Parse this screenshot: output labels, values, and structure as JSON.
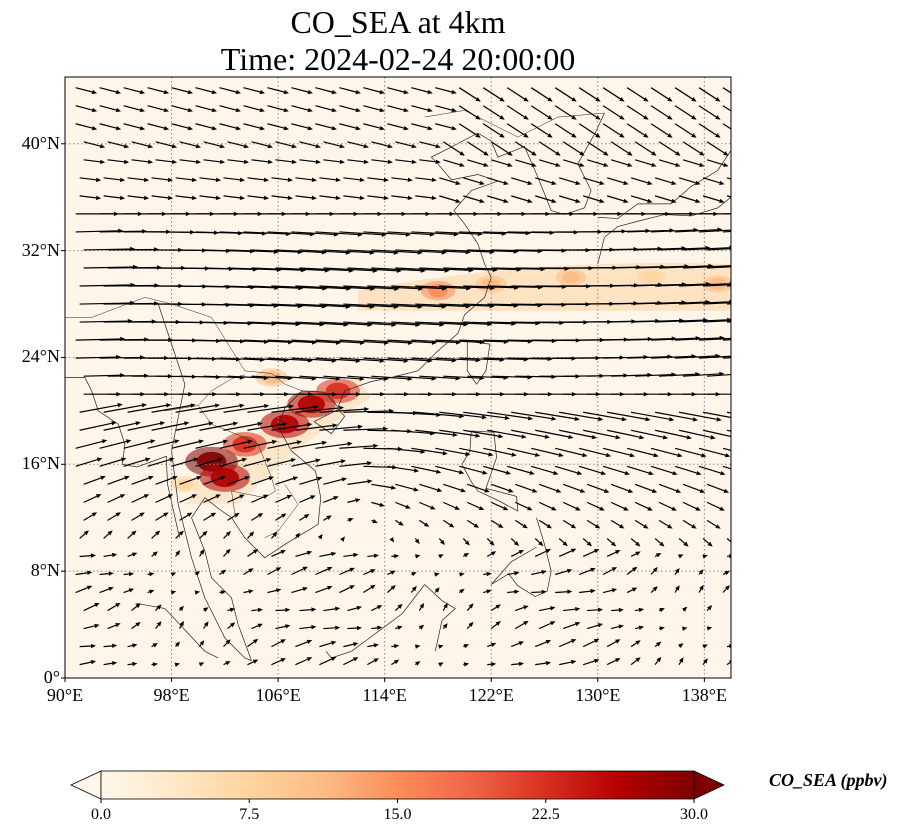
{
  "title": {
    "line1": "CO_SEA at 4km",
    "line2": "Time: 2024-02-24 20:00:00"
  },
  "axes": {
    "lon_range": [
      90,
      140
    ],
    "lat_range": [
      0,
      45
    ],
    "x_ticks": [
      "90°E",
      "98°E",
      "106°E",
      "114°E",
      "122°E",
      "130°E",
      "138°E"
    ],
    "x_tick_values": [
      90,
      98,
      106,
      114,
      122,
      130,
      138
    ],
    "y_ticks": [
      "0°",
      "8°N",
      "16°N",
      "24°N",
      "32°N",
      "40°N"
    ],
    "y_tick_values": [
      0,
      8,
      16,
      24,
      32,
      40
    ],
    "gridlines": "dotted"
  },
  "colorbar": {
    "label": "CO_SEA (ppbv)",
    "ticks": [
      "0.0",
      "7.5",
      "15.0",
      "22.5",
      "30.0"
    ],
    "range": [
      0,
      30
    ],
    "extend": "both",
    "colormap": "OrRd",
    "colors": [
      "#fff7ec",
      "#fee8c8",
      "#fdd49e",
      "#fdbb84",
      "#fc8d59",
      "#ef6548",
      "#d7301f",
      "#b30000",
      "#7f0000"
    ]
  },
  "plumes": [
    {
      "lon": 101,
      "lat": 16.2,
      "value": 30
    },
    {
      "lon": 102,
      "lat": 15.0,
      "value": 28
    },
    {
      "lon": 103.5,
      "lat": 17.5,
      "value": 22
    },
    {
      "lon": 106.5,
      "lat": 19.0,
      "value": 27
    },
    {
      "lon": 108.5,
      "lat": 20.5,
      "value": 26
    },
    {
      "lon": 110.5,
      "lat": 21.5,
      "value": 22
    },
    {
      "lon": 105.5,
      "lat": 22.5,
      "value": 12
    },
    {
      "lon": 118,
      "lat": 29.0,
      "value": 14
    },
    {
      "lon": 122,
      "lat": 29.5,
      "value": 11
    },
    {
      "lon": 128,
      "lat": 30.0,
      "value": 10
    },
    {
      "lon": 134,
      "lat": 30.0,
      "value": 9
    },
    {
      "lon": 139,
      "lat": 29.5,
      "value": 10
    },
    {
      "lon": 99,
      "lat": 14.5,
      "value": 9
    }
  ]
}
